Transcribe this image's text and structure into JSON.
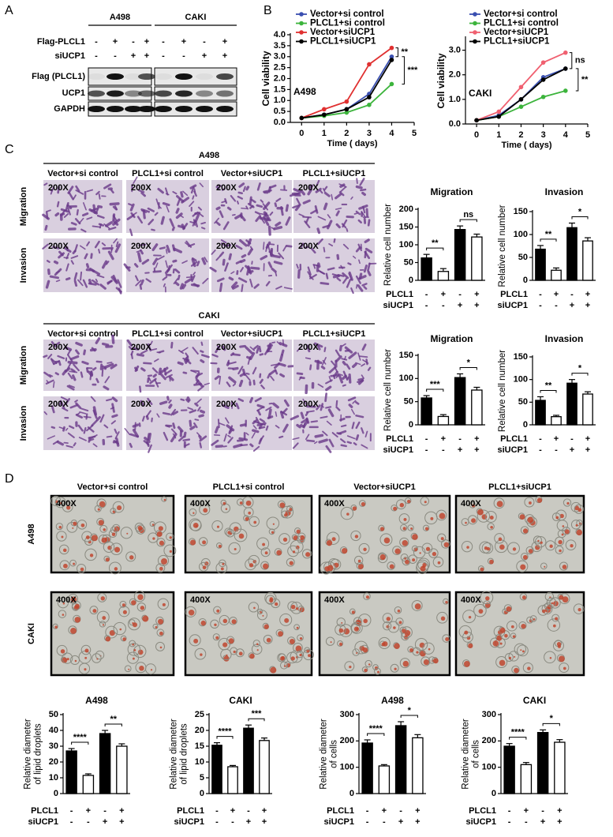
{
  "panel_labels": [
    "A",
    "B",
    "C",
    "D"
  ],
  "blot": {
    "cell_lines": [
      "A498",
      "CAKI"
    ],
    "conditions": [
      {
        "name": "Flag-PLCL1",
        "signs": [
          "-",
          "+",
          "-",
          "+"
        ]
      },
      {
        "name": "siUCP1",
        "signs": [
          "-",
          "-",
          "+",
          "+"
        ]
      }
    ],
    "bands": [
      "Flag (PLCL1)",
      "UCP1",
      "GAPDH"
    ]
  },
  "transwell": {
    "groups": [
      {
        "title": "A498",
        "columns": [
          "Vector+si control",
          "PLCL1+si control",
          "Vector+siUCP1",
          "PLCL1+siUCP1"
        ],
        "rows": [
          "Migration",
          "Invasion"
        ],
        "magnification": "200X"
      },
      {
        "title": "CAKI",
        "columns": [
          "Vector+si control",
          "PLCL1+si control",
          "Vector+siUCP1",
          "PLCL1+siUCP1"
        ],
        "rows": [
          "Migration",
          "Invasion"
        ],
        "magnification": "200X"
      }
    ]
  },
  "oil_red": {
    "columns": [
      "Vector+si control",
      "PLCL1+si control",
      "Vector+siUCP1",
      "PLCL1+siUCP1"
    ],
    "rows": [
      "A498",
      "CAKI"
    ],
    "magnification": "400X"
  },
  "chart_data": [
    {
      "type": "line",
      "label": "A498",
      "xlabel": "Time ( days)",
      "ylabel": "Cell viability",
      "x": [
        0,
        1,
        2,
        3,
        4
      ],
      "xlim": [
        -0.5,
        5
      ],
      "xticks": [
        0,
        1,
        2,
        3,
        4,
        5
      ],
      "ylim": [
        0,
        4
      ],
      "yticks": [
        {
          "value": 0,
          "label": "0.0"
        },
        {
          "value": 0.5,
          "label": "0.5"
        },
        {
          "value": 1,
          "label": "1.0"
        },
        {
          "value": 1.5,
          "label": "1.5"
        },
        {
          "value": 2,
          "label": "2.0"
        },
        {
          "value": 2.5,
          "label": "2.5"
        },
        {
          "value": 3,
          "label": "3.0"
        },
        {
          "value": 3.5,
          "label": "3.5"
        },
        {
          "value": 4,
          "label": "4.0"
        }
      ],
      "series": [
        {
          "name": "Vector+si control",
          "color": "#3a4fb0",
          "values": [
            0.2,
            0.35,
            0.6,
            1.3,
            3.0
          ]
        },
        {
          "name": "PLCL1+si control",
          "color": "#3cb43c",
          "values": [
            0.2,
            0.3,
            0.45,
            0.8,
            1.75
          ]
        },
        {
          "name": "Vector+siUCP1",
          "color": "#e03030",
          "values": [
            0.2,
            0.6,
            0.95,
            2.65,
            3.4
          ]
        },
        {
          "name": "PLCL1+siUCP1",
          "color": "#000000",
          "values": [
            0.2,
            0.35,
            0.6,
            1.15,
            2.85
          ]
        }
      ],
      "annotations": [
        "**",
        "***"
      ]
    },
    {
      "type": "line",
      "label": "CAKI",
      "xlabel": "Time ( days)",
      "ylabel": "Cell viability",
      "x": [
        0,
        1,
        2,
        3,
        4
      ],
      "xlim": [
        -0.5,
        5
      ],
      "xticks": [
        0,
        1,
        2,
        3,
        4,
        5
      ],
      "ylim": [
        0,
        3.5
      ],
      "yticks": [
        {
          "value": 0,
          "label": "0.0"
        },
        {
          "value": 1,
          "label": "1.0"
        },
        {
          "value": 2,
          "label": "2.0"
        },
        {
          "value": 3,
          "label": "3.0"
        }
      ],
      "series": [
        {
          "name": "Vector+si control",
          "color": "#3a4fb0",
          "values": [
            0.15,
            0.35,
            1.0,
            1.9,
            2.25
          ]
        },
        {
          "name": "PLCL1+si control",
          "color": "#3cb43c",
          "values": [
            0.15,
            0.3,
            0.7,
            1.1,
            1.35
          ]
        },
        {
          "name": "Vector+siUCP1",
          "color": "#f06070",
          "values": [
            0.15,
            0.5,
            1.5,
            2.5,
            2.9
          ]
        },
        {
          "name": "PLCL1+siUCP1",
          "color": "#000000",
          "values": [
            0.15,
            0.3,
            1.0,
            1.8,
            2.25
          ]
        }
      ],
      "annotations": [
        "ns",
        "**"
      ]
    },
    {
      "type": "bar",
      "title": "Migration",
      "ylabel": [
        "Relative cell number"
      ],
      "ylim": [
        0,
        200
      ],
      "yticks": [
        0,
        50,
        100,
        150,
        200
      ],
      "values": [
        63,
        25,
        143,
        122
      ],
      "errors": [
        10,
        8,
        10,
        8
      ],
      "colors": [
        "#000000",
        "#ffffff",
        "#000000",
        "#ffffff"
      ],
      "rows": [
        {
          "name": "PLCL1",
          "signs": [
            "-",
            "+",
            "-",
            "+"
          ]
        },
        {
          "name": "siUCP1",
          "signs": [
            "-",
            "-",
            "+",
            "+"
          ]
        }
      ],
      "significance": [
        "**",
        "ns"
      ]
    },
    {
      "type": "bar",
      "title": "Invasion",
      "ylabel": [
        "Relative cell number"
      ],
      "ylim": [
        0,
        150
      ],
      "yticks": [
        0,
        50,
        100,
        150
      ],
      "values": [
        68,
        22,
        115,
        86
      ],
      "errors": [
        8,
        5,
        10,
        7
      ],
      "colors": [
        "#000000",
        "#ffffff",
        "#000000",
        "#ffffff"
      ],
      "rows": [
        {
          "name": "PLCL1",
          "signs": [
            "-",
            "+",
            "-",
            "+"
          ]
        },
        {
          "name": "siUCP1",
          "signs": [
            "-",
            "-",
            "+",
            "+"
          ]
        }
      ],
      "significance": [
        "**",
        "*"
      ]
    },
    {
      "type": "bar",
      "title": "Migration",
      "ylabel": [
        "Relative cell number"
      ],
      "ylim": [
        0,
        150
      ],
      "yticks": [
        0,
        50,
        100,
        150
      ],
      "values": [
        58,
        18,
        102,
        75
      ],
      "errors": [
        5,
        4,
        8,
        6
      ],
      "colors": [
        "#000000",
        "#ffffff",
        "#000000",
        "#ffffff"
      ],
      "rows": [
        {
          "name": "PLCL1",
          "signs": [
            "-",
            "+",
            "-",
            "+"
          ]
        },
        {
          "name": "siUCP1",
          "signs": [
            "-",
            "-",
            "+",
            "+"
          ]
        }
      ],
      "significance": [
        "***",
        "*"
      ]
    },
    {
      "type": "bar",
      "title": "Invasion",
      "ylabel": [
        "Relative cell number"
      ],
      "ylim": [
        0,
        150
      ],
      "yticks": [
        0,
        50,
        100,
        150
      ],
      "values": [
        54,
        18,
        92,
        68
      ],
      "errors": [
        8,
        3,
        8,
        5
      ],
      "colors": [
        "#000000",
        "#ffffff",
        "#000000",
        "#ffffff"
      ],
      "rows": [
        {
          "name": "PLCL1",
          "signs": [
            "-",
            "+",
            "-",
            "+"
          ]
        },
        {
          "name": "siUCP1",
          "signs": [
            "-",
            "-",
            "+",
            "+"
          ]
        }
      ],
      "significance": [
        "**",
        "*"
      ]
    },
    {
      "type": "bar",
      "title": "A498",
      "ylabel": [
        "Relative diameter",
        "of lipid droplets"
      ],
      "ylim": [
        0,
        50
      ],
      "yticks": [
        0,
        10,
        20,
        30,
        40,
        50
      ],
      "values": [
        27,
        11.5,
        38,
        30
      ],
      "errors": [
        1.5,
        1,
        2,
        1.5
      ],
      "colors": [
        "#000000",
        "#ffffff",
        "#000000",
        "#ffffff"
      ],
      "rows": [
        {
          "name": "PLCL1",
          "signs": [
            "-",
            "+",
            "-",
            "+"
          ]
        },
        {
          "name": "siUCP1",
          "signs": [
            "-",
            "-",
            "+",
            "+"
          ]
        }
      ],
      "significance": [
        "****",
        "**"
      ]
    },
    {
      "type": "bar",
      "title": "CAKI",
      "ylabel": [
        "Relative diameter",
        "of lipid droplets"
      ],
      "ylim": [
        0,
        25
      ],
      "yticks": [
        0,
        5,
        10,
        15,
        20,
        25
      ],
      "values": [
        15.3,
        8.5,
        20.7,
        16.8
      ],
      "errors": [
        0.8,
        0.4,
        1,
        0.8
      ],
      "colors": [
        "#000000",
        "#ffffff",
        "#000000",
        "#ffffff"
      ],
      "rows": [
        {
          "name": "PLCL1",
          "signs": [
            "-",
            "+",
            "-",
            "+"
          ]
        },
        {
          "name": "siUCP1",
          "signs": [
            "-",
            "-",
            "+",
            "+"
          ]
        }
      ],
      "significance": [
        "****",
        "***"
      ]
    },
    {
      "type": "bar",
      "title": "A498",
      "ylabel": [
        "Relative diameter",
        "of cells"
      ],
      "ylim": [
        0,
        300
      ],
      "yticks": [
        0,
        100,
        200,
        300
      ],
      "values": [
        192,
        105,
        258,
        212
      ],
      "errors": [
        12,
        5,
        15,
        12
      ],
      "colors": [
        "#000000",
        "#ffffff",
        "#000000",
        "#ffffff"
      ],
      "rows": [
        {
          "name": "PLCL1",
          "signs": [
            "-",
            "+",
            "-",
            "+"
          ]
        },
        {
          "name": "siUCP1",
          "signs": [
            "-",
            "-",
            "+",
            "+"
          ]
        }
      ],
      "significance": [
        "****",
        "*"
      ]
    },
    {
      "type": "bar",
      "title": "CAKI",
      "ylabel": [
        "Relative diameter",
        "of cells"
      ],
      "ylim": [
        0,
        300
      ],
      "yticks": [
        0,
        100,
        200,
        300
      ],
      "values": [
        180,
        110,
        232,
        195
      ],
      "errors": [
        10,
        8,
        10,
        10
      ],
      "colors": [
        "#000000",
        "#ffffff",
        "#000000",
        "#ffffff"
      ],
      "rows": [
        {
          "name": "PLCL1",
          "signs": [
            "-",
            "+",
            "-",
            "+"
          ]
        },
        {
          "name": "siUCP1",
          "signs": [
            "-",
            "-",
            "+",
            "+"
          ]
        }
      ],
      "significance": [
        "****",
        "*"
      ]
    }
  ]
}
